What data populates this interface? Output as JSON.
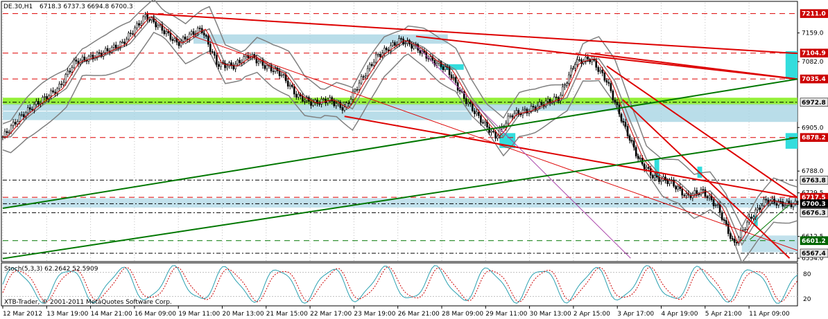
{
  "header": {
    "symbol_label": "DE.30,H1",
    "ohlc": "6718.3 6737.3 6694.8 6700.3"
  },
  "indicator": {
    "label": "Stoch(5,3,3) 62.2642 52.5909",
    "copyright": "XTB-Trader, © 2001-2011 MetaQuotes Software Corp.",
    "axis_ticks": [
      "80",
      "20"
    ]
  },
  "price_axis": {
    "grey_ticks": [
      "7211.0",
      "7104.9",
      "7082.0",
      "7035.4",
      "6905.0",
      "6878.2",
      "6788.0",
      "6763.8",
      "6717.5",
      "6700.3",
      "6676.3",
      "6601.2",
      "6567.4",
      "6554.0"
    ],
    "plain_ticks": [
      {
        "value": 7159.0,
        "text": "7159.0"
      },
      {
        "value": 7082.0,
        "text": "7082.0"
      },
      {
        "value": 6905.0,
        "text": "6905.0"
      },
      {
        "value": 6788.0,
        "text": "6788.0"
      },
      {
        "value": 6729.5,
        "text": "6729.5"
      },
      {
        "value": 6612.5,
        "text": "6612.5"
      },
      {
        "value": 6554.0,
        "text": "6554.0"
      }
    ],
    "level_tags": [
      {
        "value": 7211.0,
        "text": "7211.0",
        "color": "#cc0000"
      },
      {
        "value": 7104.9,
        "text": "7104.9",
        "color": "#cc0000"
      },
      {
        "value": 7035.4,
        "text": "7035.4",
        "color": "#cc0000"
      },
      {
        "value": 6972.8,
        "text": "6972.8",
        "color": "#e8e8e8"
      },
      {
        "value": 6878.2,
        "text": "6878.2",
        "color": "#cc0000"
      },
      {
        "value": 6763.8,
        "text": "6763.8",
        "color": "#e8e8e8"
      },
      {
        "value": 6717.5,
        "text": "6717.5",
        "color": "#cc0000"
      },
      {
        "value": 6700.3,
        "text": "6700.3",
        "color": "#000000"
      },
      {
        "value": 6676.3,
        "text": "6676.3",
        "color": "#e8e8e8"
      },
      {
        "value": 6601.2,
        "text": "6601.2",
        "color": "#006600"
      },
      {
        "value": 6567.4,
        "text": "6567.4",
        "color": "#e8e8e8"
      }
    ]
  },
  "time_axis": {
    "labels": [
      "12 Mar 2012",
      "13 Mar 19:00",
      "14 Mar 21:00",
      "16 Mar 09:00",
      "19 Mar 11:00",
      "20 Mar 13:00",
      "21 Mar 15:00",
      "22 Mar 17:00",
      "23 Mar 19:00",
      "26 Mar 21:00",
      "28 Mar 09:00",
      "29 Mar 11:00",
      "30 Mar 13:00",
      "2 Apr 15:00",
      "3 Apr 17:00",
      "4 Apr 19:00",
      "5 Apr 21:00",
      "11 Apr 09:00"
    ]
  },
  "colors": {
    "background": "#ffffff",
    "grid": "#c0c0c0",
    "candles": "#000000",
    "bollinger": "#808080",
    "ma": "#cc0000",
    "resistance": "#dd0000",
    "support_trend": "#007700",
    "zone_blue": "#a8d4e4",
    "zone_cyan": "#33dddd",
    "zone_green": "#88ee22",
    "stoch_main": "#2aa0b0",
    "stoch_signal": "#cc0000"
  },
  "chart_data": {
    "type": "candlestick",
    "symbol": "DE.30",
    "timeframe": "H1",
    "last_bar": {
      "open": 6718.3,
      "high": 6737.3,
      "low": 6694.8,
      "close": 6700.3
    },
    "price_range": [
      6545,
      7240
    ],
    "horizontal_levels": [
      7211.0,
      7104.9,
      7035.4,
      6972.8,
      6878.2,
      6763.8,
      6717.5,
      6700.3,
      6676.3,
      6601.2,
      6567.4
    ],
    "close_path": [
      {
        "t": 0.0,
        "p": 6880
      },
      {
        "t": 0.02,
        "p": 6930
      },
      {
        "t": 0.04,
        "p": 6965
      },
      {
        "t": 0.07,
        "p": 7010
      },
      {
        "t": 0.09,
        "p": 7080
      },
      {
        "t": 0.12,
        "p": 7100
      },
      {
        "t": 0.15,
        "p": 7130
      },
      {
        "t": 0.18,
        "p": 7205
      },
      {
        "t": 0.2,
        "p": 7170
      },
      {
        "t": 0.22,
        "p": 7130
      },
      {
        "t": 0.24,
        "p": 7160
      },
      {
        "t": 0.25,
        "p": 7170
      },
      {
        "t": 0.27,
        "p": 7075
      },
      {
        "t": 0.29,
        "p": 7070
      },
      {
        "t": 0.31,
        "p": 7100
      },
      {
        "t": 0.33,
        "p": 7070
      },
      {
        "t": 0.35,
        "p": 7050
      },
      {
        "t": 0.37,
        "p": 6990
      },
      {
        "t": 0.39,
        "p": 6970
      },
      {
        "t": 0.41,
        "p": 6980
      },
      {
        "t": 0.43,
        "p": 6955
      },
      {
        "t": 0.45,
        "p": 7030
      },
      {
        "t": 0.47,
        "p": 7095
      },
      {
        "t": 0.5,
        "p": 7140
      },
      {
        "t": 0.52,
        "p": 7120
      },
      {
        "t": 0.54,
        "p": 7085
      },
      {
        "t": 0.56,
        "p": 7060
      },
      {
        "t": 0.58,
        "p": 6985
      },
      {
        "t": 0.6,
        "p": 6930
      },
      {
        "t": 0.62,
        "p": 6880
      },
      {
        "t": 0.64,
        "p": 6940
      },
      {
        "t": 0.66,
        "p": 6950
      },
      {
        "t": 0.68,
        "p": 6970
      },
      {
        "t": 0.7,
        "p": 6985
      },
      {
        "t": 0.72,
        "p": 7080
      },
      {
        "t": 0.74,
        "p": 7090
      },
      {
        "t": 0.76,
        "p": 7030
      },
      {
        "t": 0.78,
        "p": 6920
      },
      {
        "t": 0.8,
        "p": 6820
      },
      {
        "t": 0.82,
        "p": 6770
      },
      {
        "t": 0.84,
        "p": 6760
      },
      {
        "t": 0.86,
        "p": 6720
      },
      {
        "t": 0.88,
        "p": 6735
      },
      {
        "t": 0.9,
        "p": 6690
      },
      {
        "t": 0.92,
        "p": 6590
      },
      {
        "t": 0.94,
        "p": 6660
      },
      {
        "t": 0.96,
        "p": 6710
      },
      {
        "t": 0.98,
        "p": 6700
      },
      {
        "t": 1.0,
        "p": 6700
      }
    ],
    "stochastic": {
      "params": "5,3,3",
      "main": 62.2642,
      "signal": 52.5909,
      "levels": [
        80,
        20
      ]
    }
  }
}
